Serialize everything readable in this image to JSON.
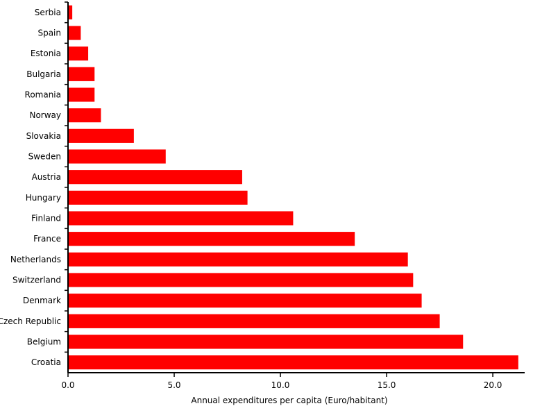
{
  "chart_data": {
    "type": "bar",
    "orientation": "horizontal",
    "categories": [
      "Serbia",
      "Spain",
      "Estonia",
      "Bulgaria",
      "Romania",
      "Norway",
      "Slovakia",
      "Sweden",
      "Austria",
      "Hungary",
      "Finland",
      "France",
      "Netherlands",
      "Switzerland",
      "Denmark",
      "Czech Republic",
      "Belgium",
      "Croatia"
    ],
    "values": [
      0.2,
      0.6,
      0.95,
      1.25,
      1.25,
      1.55,
      3.1,
      4.6,
      8.2,
      8.45,
      10.6,
      13.5,
      16.0,
      16.25,
      16.65,
      17.5,
      18.6,
      21.2
    ],
    "xlabel": "Annual expenditures per capita (Euro/habitant)",
    "ylabel": "",
    "xlim": [
      0,
      21.5
    ],
    "xticks": [
      0,
      5,
      10,
      15,
      20
    ],
    "xtick_labels": [
      "0.0",
      "5.0",
      "10.0",
      "15.0",
      "20.0"
    ],
    "bar_color": "#ff0000",
    "grid": false
  }
}
